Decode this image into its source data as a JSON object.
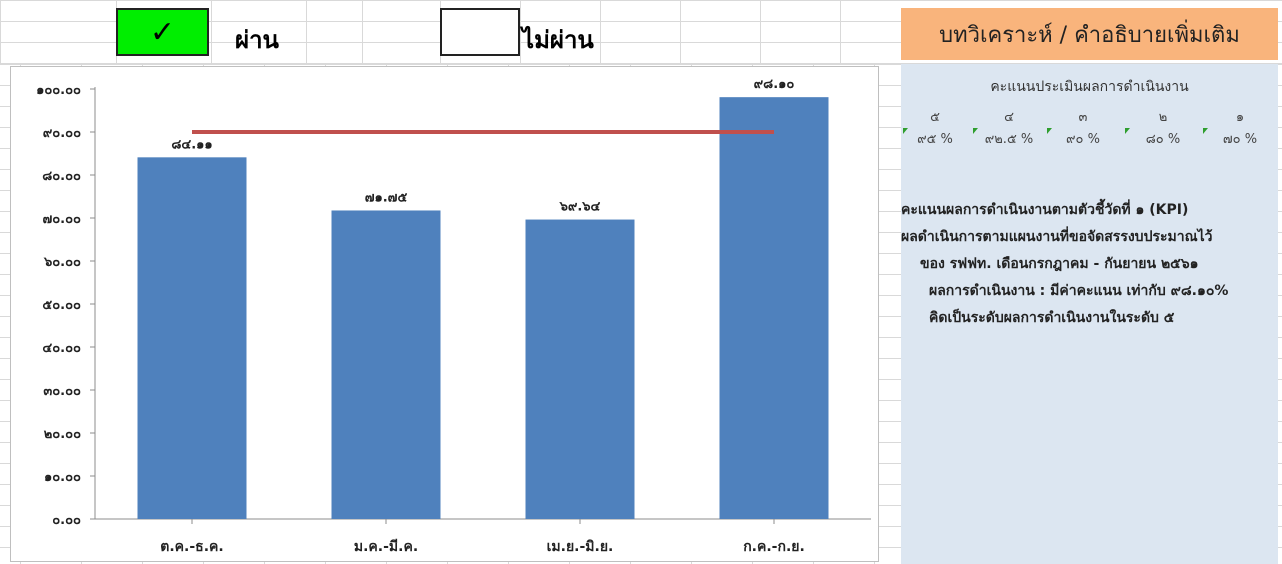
{
  "status": {
    "pass_mark": "✓",
    "pass_label": "ผ่าน",
    "fail_label": "ไม่ผ่าน"
  },
  "analysis": {
    "header": "บทวิเคราะห์ / คำอธิบายเพิ่มเติม",
    "score_title": "คะแนนประเมินผลการดำเนินงาน",
    "levels": [
      {
        "level": "๕",
        "percent": "๙๕ %"
      },
      {
        "level": "๔",
        "percent": "๙๒.๕ %"
      },
      {
        "level": "๓",
        "percent": "๙๐ %"
      },
      {
        "level": "๒",
        "percent": "๘๐ %"
      },
      {
        "level": "๑",
        "percent": "๗๐ %"
      }
    ],
    "summary": {
      "line1": "คะแนนผลการดำเนินงานตามตัวชี้วัดที่ ๑ (KPI)",
      "line2": "ผลดำเนินการตามแผนงานที่ขอจัดสรรงบประมาณไว้",
      "line3": "ของ รฟฟท. เดือนกรกฎาคม - กันยายน ๒๕๖๑",
      "line4": "ผลการดำเนินงาน : มีค่าคะแนน เท่ากับ ๙๘.๑๐%",
      "line5": "คิดเป็นระดับผลการดำเนินงานในระดับ ๕"
    }
  },
  "chart_data": {
    "type": "bar",
    "categories": [
      "ต.ค.-ธ.ค.",
      "ม.ค.-มี.ค.",
      "เม.ย.-มิ.ย.",
      "ก.ค.-ก.ย."
    ],
    "values": [
      84.11,
      71.75,
      69.64,
      98.1
    ],
    "data_labels": [
      "๘๔.๑๑",
      "๗๑.๗๕",
      "๖๙.๖๔",
      "๙๘.๑๐"
    ],
    "ylim": [
      0,
      100
    ],
    "yticks": [
      0,
      10,
      20,
      30,
      40,
      50,
      60,
      70,
      80,
      90,
      100
    ],
    "ytick_labels": [
      "๐.๐๐",
      "๑๐.๐๐",
      "๒๐.๐๐",
      "๓๐.๐๐",
      "๔๐.๐๐",
      "๕๐.๐๐",
      "๖๐.๐๐",
      "๗๐.๐๐",
      "๘๐.๐๐",
      "๙๐.๐๐",
      "๑๐๐.๐๐"
    ],
    "target_line": 90,
    "bar_color": "#4f81bd",
    "target_color": "#c0504d",
    "grid": false,
    "title": "",
    "xlabel": "",
    "ylabel": ""
  }
}
